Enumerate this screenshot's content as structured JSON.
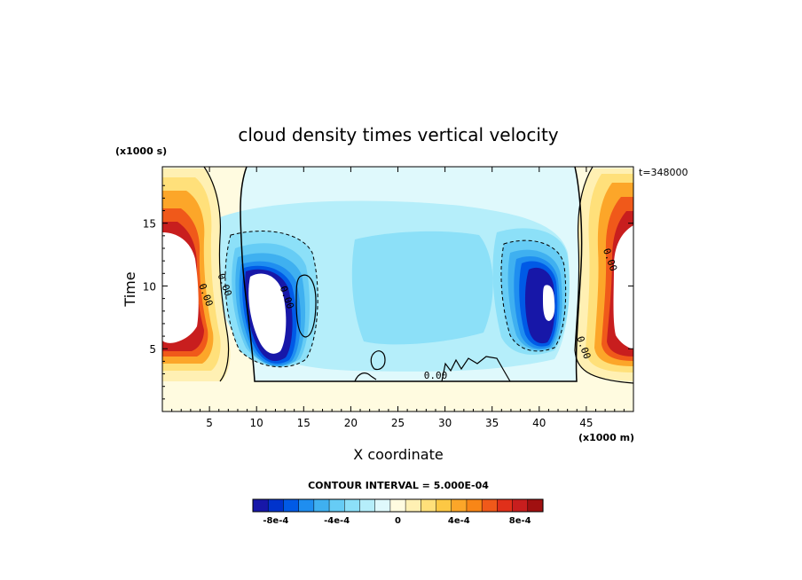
{
  "chart_data": {
    "type": "heatmap",
    "title": "cloud density times vertical velocity",
    "xlabel": "X coordinate",
    "ylabel": "Time",
    "x_unit_label": "(x1000 m)",
    "y_unit_label": "(x1000 s)",
    "time_stamp": "t=348000",
    "xlim": [
      0,
      50
    ],
    "ylim": [
      0,
      19.5
    ],
    "x_ticks": [
      5,
      10,
      15,
      20,
      25,
      30,
      35,
      40,
      45
    ],
    "x_tick_labels": [
      "5",
      "10",
      "15",
      "20",
      "25",
      "30",
      "35",
      "40",
      "45"
    ],
    "y_ticks": [
      5,
      10,
      15
    ],
    "y_tick_labels": [
      "5",
      "10",
      "15"
    ],
    "contour_interval_text": "CONTOUR INTERVAL = 5.000E-04",
    "contour_labels": [
      {
        "text": "0.00",
        "x": 29,
        "y": 2.6
      },
      {
        "text": "0.00",
        "x": 4.3,
        "y": 9.2
      },
      {
        "text": "0.00",
        "x": 6.3,
        "y": 10.0
      },
      {
        "text": "0.00",
        "x": 12.9,
        "y": 9.0
      },
      {
        "text": "0.00",
        "x": 44.4,
        "y": 5.0
      },
      {
        "text": "0.00",
        "x": 47.2,
        "y": 12.0
      }
    ],
    "colorbar": {
      "colors": [
        "#1717a8",
        "#0033cc",
        "#005ae6",
        "#1f8ef0",
        "#3fb0f0",
        "#66ccf5",
        "#8ce0f8",
        "#b5eefa",
        "#dff9fc",
        "#fffbe0",
        "#fff0b3",
        "#ffe07a",
        "#fcc844",
        "#fca629",
        "#f88617",
        "#f0591a",
        "#e0301a",
        "#c81e1e",
        "#a01010"
      ],
      "tick_labels": [
        "-8e-4",
        "-4e-4",
        "0",
        "4e-4",
        "8e-4"
      ],
      "tick_values": [
        -0.0008,
        -0.0004,
        0,
        0.0004,
        0.0008
      ]
    },
    "features": [
      {
        "kind": "undefined-region",
        "x": 2.8,
        "y": 10.8
      },
      {
        "kind": "undefined-region",
        "x": 12.1,
        "y": 9.3
      },
      {
        "kind": "undefined-region",
        "x": 41.0,
        "y": 9.5
      },
      {
        "kind": "undefined-region",
        "x": 47.5,
        "y": 10.2
      },
      {
        "kind": "positive-max",
        "x": 2.5,
        "y": 16.5
      },
      {
        "kind": "positive-max",
        "x": 47.5,
        "y": 16.0
      },
      {
        "kind": "negative-min",
        "x": 12.1,
        "y": 9.3
      },
      {
        "kind": "negative-min",
        "x": 41.0,
        "y": 9.5
      }
    ],
    "grid": false,
    "legend": "bottom"
  }
}
